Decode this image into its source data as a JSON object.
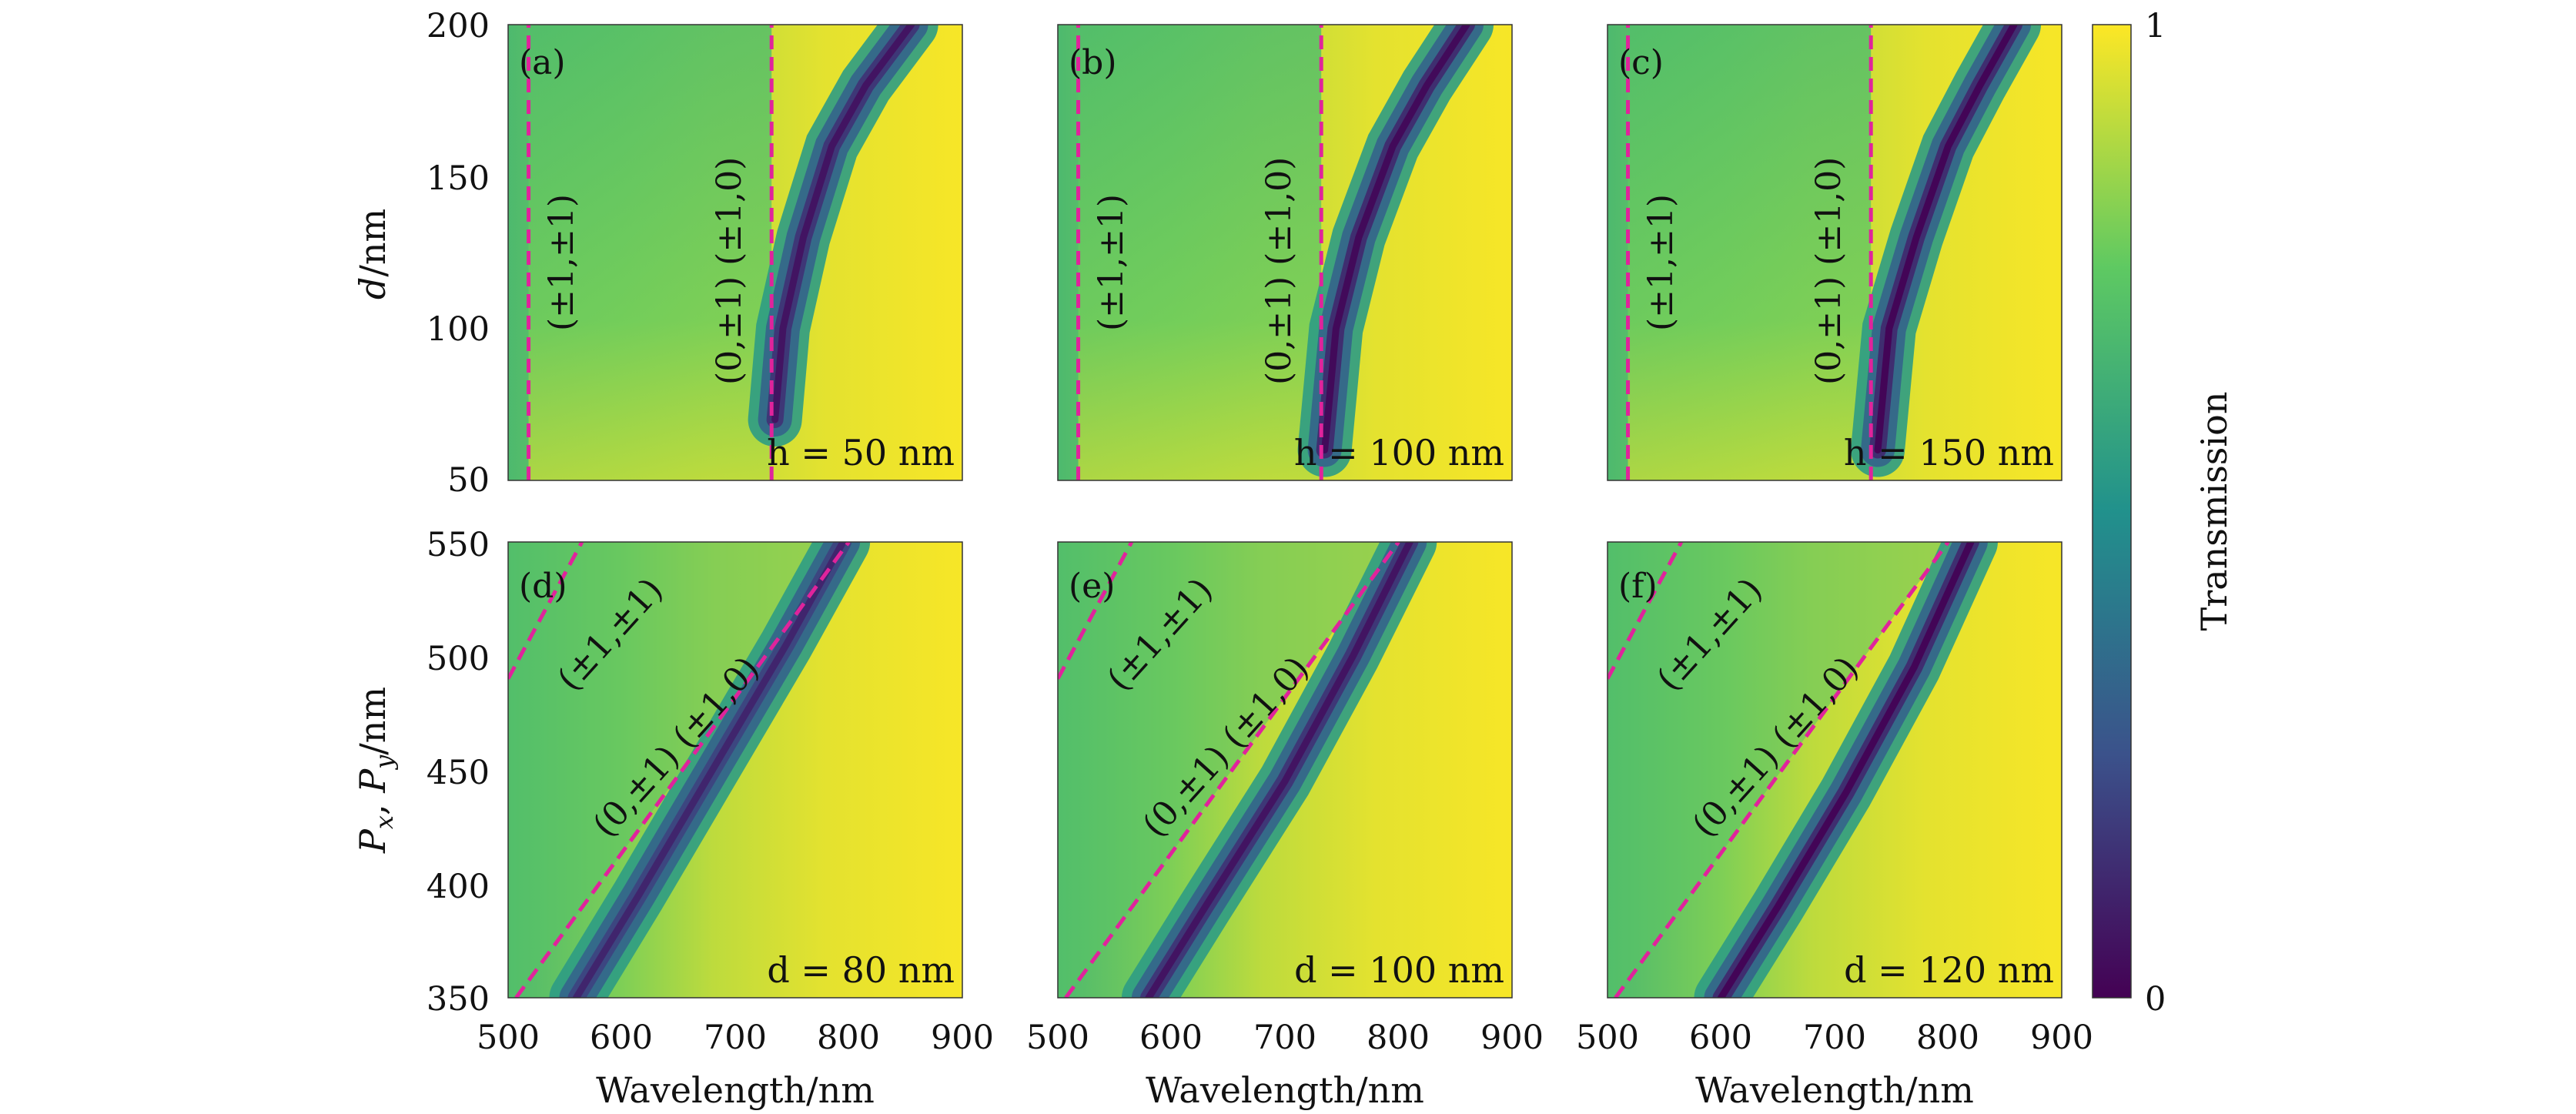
{
  "chart_data": [
    {
      "type": "heatmap",
      "panel": "(a)",
      "row": "top",
      "xlabel": "",
      "ylabel": "d/nm",
      "xlim": [
        500,
        900
      ],
      "ylim": [
        50,
        200
      ],
      "xticks": [],
      "yticks": [
        "50",
        "100",
        "150",
        "200"
      ],
      "param_label": "h = 50 nm",
      "annotations": [
        "(±1,±1)",
        "(0,±1) (±1,0)"
      ],
      "rayleigh_lines": [
        {
          "order": "(±1,±1)",
          "points": [
            [
              518,
              50
            ],
            [
              518,
              200
            ]
          ]
        },
        {
          "order": "(0,±1) (±1,0)",
          "points": [
            [
              732,
              50
            ],
            [
              732,
              200
            ]
          ]
        }
      ],
      "resonance": {
        "min_transmission": 0.05,
        "points": [
          [
            735,
            70
          ],
          [
            742,
            100
          ],
          [
            760,
            130
          ],
          [
            785,
            160
          ],
          [
            815,
            180
          ],
          [
            855,
            200
          ]
        ]
      }
    },
    {
      "type": "heatmap",
      "panel": "(b)",
      "row": "top",
      "xlabel": "",
      "ylabel": "",
      "xlim": [
        500,
        900
      ],
      "ylim": [
        50,
        200
      ],
      "xticks": [],
      "yticks": [],
      "param_label": "h = 100 nm",
      "annotations": [
        "(±1,±1)",
        "(0,±1) (±1,0)"
      ],
      "rayleigh_lines": [
        {
          "order": "(±1,±1)",
          "points": [
            [
              518,
              50
            ],
            [
              518,
              200
            ]
          ]
        },
        {
          "order": "(0,±1) (±1,0)",
          "points": [
            [
              732,
              50
            ],
            [
              732,
              200
            ]
          ]
        }
      ],
      "resonance": {
        "min_transmission": 0.02,
        "points": [
          [
            735,
            60
          ],
          [
            745,
            100
          ],
          [
            765,
            130
          ],
          [
            795,
            160
          ],
          [
            825,
            180
          ],
          [
            860,
            200
          ]
        ]
      }
    },
    {
      "type": "heatmap",
      "panel": "(c)",
      "row": "top",
      "xlabel": "",
      "ylabel": "",
      "xlim": [
        500,
        900
      ],
      "ylim": [
        50,
        200
      ],
      "xticks": [],
      "yticks": [],
      "param_label": "h = 150 nm",
      "annotations": [
        "(±1,±1)",
        "(0,±1) (±1,0)"
      ],
      "rayleigh_lines": [
        {
          "order": "(±1,±1)",
          "points": [
            [
              518,
              50
            ],
            [
              518,
              200
            ]
          ]
        },
        {
          "order": "(0,±1) (±1,0)",
          "points": [
            [
              732,
              50
            ],
            [
              732,
              200
            ]
          ]
        }
      ],
      "resonance": {
        "min_transmission": 0.0,
        "points": [
          [
            738,
            60
          ],
          [
            748,
            100
          ],
          [
            772,
            130
          ],
          [
            800,
            160
          ],
          [
            828,
            180
          ],
          [
            858,
            200
          ]
        ]
      }
    },
    {
      "type": "heatmap",
      "panel": "(d)",
      "row": "bottom",
      "xlabel": "Wavelength/nm",
      "ylabel": "Px, Py/nm",
      "xlim": [
        500,
        900
      ],
      "ylim": [
        350,
        550
      ],
      "xticks": [
        "500",
        "600",
        "700",
        "800",
        "900"
      ],
      "yticks": [
        "350",
        "400",
        "450",
        "500",
        "550"
      ],
      "param_label": "d = 80 nm",
      "annotations": [
        "(±1,±1)",
        "(0,±1) (±1,0)"
      ],
      "rayleigh_lines": [
        {
          "order": "(±1,±1)",
          "points": [
            [
              500,
              490
            ],
            [
              565,
              550
            ]
          ]
        },
        {
          "order": "(0,±1) (±1,0)",
          "points": [
            [
              507,
              350
            ],
            [
              800,
              550
            ]
          ]
        }
      ],
      "resonance": {
        "min_transmission": 0.1,
        "points": [
          [
            560,
            350
          ],
          [
            615,
            395
          ],
          [
            680,
            450
          ],
          [
            745,
            505
          ],
          [
            795,
            550
          ]
        ]
      }
    },
    {
      "type": "heatmap",
      "panel": "(e)",
      "row": "bottom",
      "xlabel": "Wavelength/nm",
      "ylabel": "",
      "xlim": [
        500,
        900
      ],
      "ylim": [
        350,
        550
      ],
      "xticks": [
        "500",
        "600",
        "700",
        "800",
        "900"
      ],
      "yticks": [],
      "param_label": "d = 100 nm",
      "annotations": [
        "(±1,±1)",
        "(0,±1) (±1,0)"
      ],
      "rayleigh_lines": [
        {
          "order": "(±1,±1)",
          "points": [
            [
              500,
              490
            ],
            [
              565,
              550
            ]
          ]
        },
        {
          "order": "(0,±1) (±1,0)",
          "points": [
            [
              507,
              350
            ],
            [
              800,
              550
            ]
          ]
        }
      ],
      "resonance": {
        "min_transmission": 0.05,
        "points": [
          [
            580,
            350
          ],
          [
            630,
            390
          ],
          [
            700,
            445
          ],
          [
            760,
            500
          ],
          [
            810,
            550
          ]
        ]
      }
    },
    {
      "type": "heatmap",
      "panel": "(f)",
      "row": "bottom",
      "xlabel": "Wavelength/nm",
      "ylabel": "",
      "xlim": [
        500,
        900
      ],
      "ylim": [
        350,
        550
      ],
      "xticks": [
        "500",
        "600",
        "700",
        "800",
        "900"
      ],
      "yticks": [],
      "param_label": "d = 120 nm",
      "annotations": [
        "(±1,±1)",
        "(0,±1) (±1,0)"
      ],
      "rayleigh_lines": [
        {
          "order": "(±1,±1)",
          "points": [
            [
              500,
              490
            ],
            [
              565,
              550
            ]
          ]
        },
        {
          "order": "(0,±1) (±1,0)",
          "points": [
            [
              507,
              350
            ],
            [
              800,
              550
            ]
          ]
        }
      ],
      "resonance": {
        "min_transmission": 0.0,
        "points": [
          [
            600,
            350
          ],
          [
            650,
            390
          ],
          [
            710,
            440
          ],
          [
            770,
            495
          ],
          [
            820,
            550
          ]
        ]
      }
    }
  ],
  "colorbar": {
    "label": "Transmission",
    "min_label": "0",
    "max_label": "1",
    "range": [
      0,
      1
    ],
    "colormap": "viridis",
    "colors": [
      "#440154",
      "#3b528b",
      "#21918c",
      "#5ec962",
      "#fde725"
    ]
  },
  "colors": {
    "rayleigh_line": "#e0239c",
    "background_high": "#e8e41e",
    "background_mid": "#7ccf4a"
  }
}
